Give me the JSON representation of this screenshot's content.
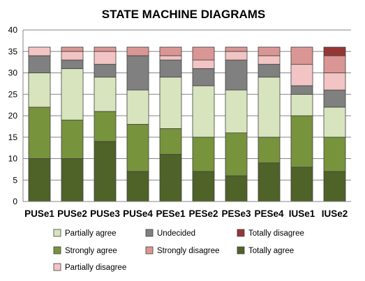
{
  "chart_data": {
    "type": "bar",
    "stacked": true,
    "title": "STATE MACHINE DIAGRAMS",
    "xlabel": "",
    "ylabel": "",
    "ylim": [
      0,
      40
    ],
    "yticks": [
      0,
      5,
      10,
      15,
      20,
      25,
      30,
      35,
      40
    ],
    "grid": true,
    "legend_position": "bottom",
    "categories": [
      "PUSe1",
      "PUSe2",
      "PUSe3",
      "PUSe4",
      "PESe1",
      "PESe2",
      "PESe3",
      "PESe4",
      "IUSe1",
      "IUSe2"
    ],
    "series": [
      {
        "name": "Totally agree",
        "color": "#4f6228",
        "values": [
          10,
          10,
          14,
          7,
          11,
          7,
          6,
          9,
          8,
          7
        ]
      },
      {
        "name": "Strongly agree",
        "color": "#77933c",
        "values": [
          12,
          9,
          7,
          11,
          6,
          8,
          10,
          6,
          12,
          8
        ]
      },
      {
        "name": "Partially agree",
        "color": "#d7e4bd",
        "values": [
          8,
          12,
          8,
          8,
          12,
          12,
          10,
          14,
          5,
          7
        ]
      },
      {
        "name": "Undecided",
        "color": "#808080",
        "values": [
          4,
          2,
          3,
          8,
          4,
          4,
          7,
          3,
          2,
          4
        ]
      },
      {
        "name": "Partially disagree",
        "color": "#f2c4c4",
        "values": [
          2,
          2,
          3,
          0,
          1,
          2,
          2,
          2,
          5,
          4
        ]
      },
      {
        "name": "Strongly disagree",
        "color": "#d99694",
        "values": [
          0,
          1,
          1,
          2,
          2,
          3,
          1,
          2,
          4,
          4
        ]
      },
      {
        "name": "Totally disagree",
        "color": "#953735",
        "values": [
          0,
          0,
          0,
          0,
          0,
          0,
          0,
          0,
          0,
          2
        ]
      }
    ],
    "legend_order": [
      "Partially agree",
      "Undecided",
      "Totally disagree",
      "Strongly agree",
      "Strongly disagree",
      "Totally agree",
      "Partially disagree"
    ]
  }
}
